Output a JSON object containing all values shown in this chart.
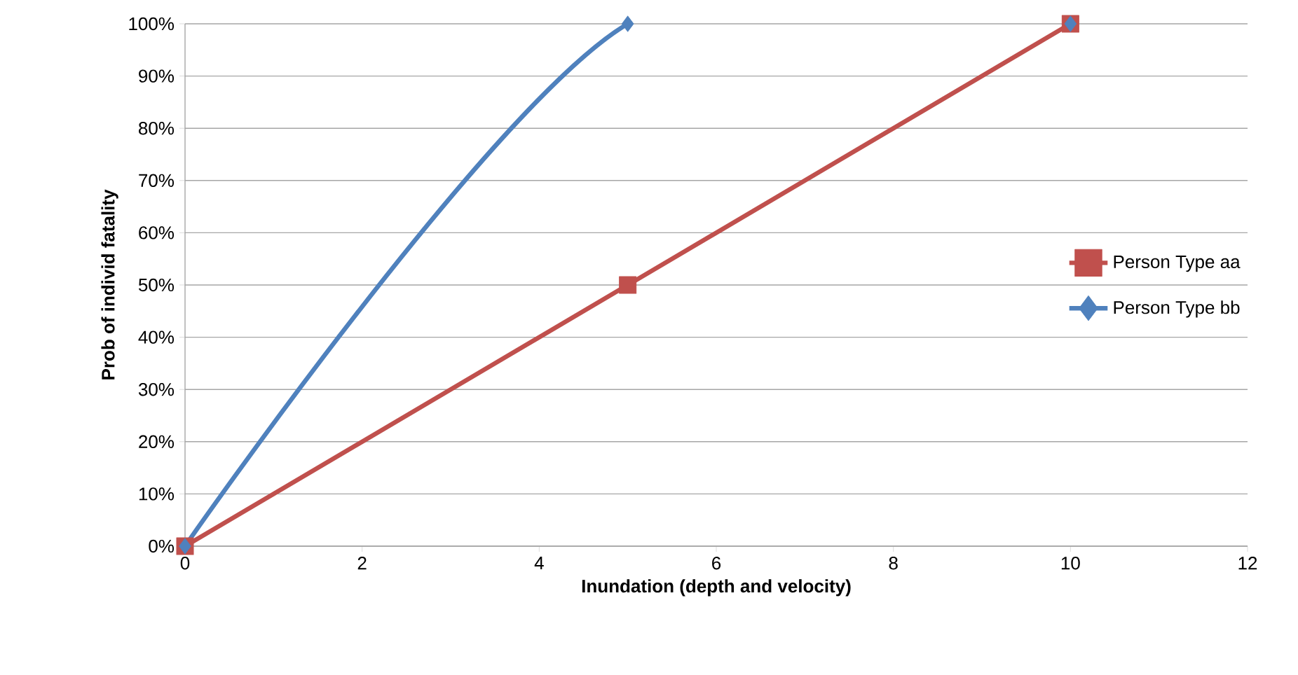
{
  "chart_data": {
    "type": "line",
    "xlabel": "Inundation (depth and velocity)",
    "ylabel": "Prob of individ fatality",
    "xlim": [
      0,
      12
    ],
    "xticks": [
      0,
      2,
      4,
      6,
      8,
      10,
      12
    ],
    "ylim": [
      0,
      100
    ],
    "yticks": [
      {
        "value": 0,
        "label": "0%"
      },
      {
        "value": 10,
        "label": "10%"
      },
      {
        "value": 20,
        "label": "20%"
      },
      {
        "value": 30,
        "label": "30%"
      },
      {
        "value": 40,
        "label": "40%"
      },
      {
        "value": 50,
        "label": "50%"
      },
      {
        "value": 60,
        "label": "60%"
      },
      {
        "value": 70,
        "label": "70%"
      },
      {
        "value": 80,
        "label": "80%"
      },
      {
        "value": 90,
        "label": "90%"
      },
      {
        "value": 100,
        "label": "100%"
      }
    ],
    "grid": "y",
    "legend": "right",
    "series": [
      {
        "name": "Person Type aa",
        "color": "#c0504d",
        "marker": "square",
        "x": [
          0,
          5,
          10
        ],
        "values": [
          0,
          50,
          100
        ]
      },
      {
        "name": "Person Type bb",
        "color": "#4f81bd",
        "marker": "diamond",
        "x": [
          0,
          5,
          10
        ],
        "values": [
          0,
          100,
          100
        ]
      }
    ]
  }
}
